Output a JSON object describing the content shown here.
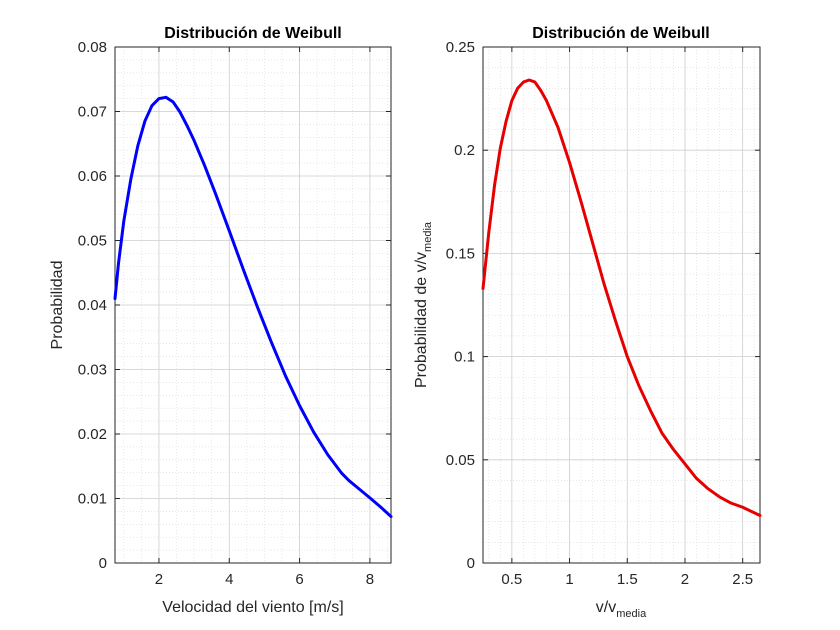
{
  "chart_data": [
    {
      "type": "line",
      "title": "Distribución de Weibull",
      "xlabel": "Velocidad del viento [m/s]",
      "ylabel": "Probabilidad",
      "xlim": [
        0.75,
        8.6
      ],
      "ylim": [
        0,
        0.08
      ],
      "xticks": [
        2,
        4,
        6,
        8
      ],
      "yticks": [
        0,
        0.01,
        0.02,
        0.03,
        0.04,
        0.05,
        0.06,
        0.07,
        0.08
      ],
      "grid": true,
      "minor_grid": true,
      "color": "#0000ff",
      "series": [
        {
          "x": [
            0.75,
            0.85,
            1.0,
            1.2,
            1.4,
            1.6,
            1.8,
            2.0,
            2.2,
            2.4,
            2.6,
            2.8,
            3.0,
            3.3,
            3.6,
            4.0,
            4.4,
            4.8,
            5.2,
            5.6,
            6.0,
            6.4,
            6.8,
            7.2,
            7.4,
            7.6,
            8.0,
            8.3,
            8.6
          ],
          "y": [
            0.041,
            0.0465,
            0.053,
            0.0595,
            0.0647,
            0.0685,
            0.0709,
            0.072,
            0.0722,
            0.0715,
            0.0699,
            0.0678,
            0.0655,
            0.0616,
            0.0574,
            0.0515,
            0.0455,
            0.0397,
            0.0342,
            0.029,
            0.0244,
            0.0203,
            0.0168,
            0.0139,
            0.0128,
            0.0119,
            0.0101,
            0.0087,
            0.0072
          ]
        }
      ]
    },
    {
      "type": "line",
      "title": "Distribución de Weibull",
      "xlabel": "v/v",
      "xlabel_sub": "media",
      "ylabel": "Probabilidad de v/v",
      "ylabel_sub": "media",
      "xlim": [
        0.25,
        2.65
      ],
      "ylim": [
        0,
        0.25
      ],
      "xticks": [
        0.5,
        1,
        1.5,
        2,
        2.5
      ],
      "yticks": [
        0,
        0.05,
        0.1,
        0.15,
        0.2,
        0.25
      ],
      "grid": true,
      "minor_grid": true,
      "color": "#e60000",
      "series": [
        {
          "x": [
            0.25,
            0.3,
            0.35,
            0.4,
            0.45,
            0.5,
            0.55,
            0.6,
            0.65,
            0.7,
            0.75,
            0.8,
            0.9,
            1.0,
            1.1,
            1.2,
            1.3,
            1.4,
            1.5,
            1.6,
            1.7,
            1.8,
            1.9,
            2.0,
            2.1,
            2.2,
            2.3,
            2.4,
            2.5,
            2.65
          ],
          "y": [
            0.133,
            0.16,
            0.183,
            0.201,
            0.214,
            0.224,
            0.23,
            0.233,
            0.234,
            0.233,
            0.229,
            0.224,
            0.211,
            0.194,
            0.175,
            0.155,
            0.135,
            0.117,
            0.1,
            0.086,
            0.074,
            0.063,
            0.055,
            0.048,
            0.041,
            0.036,
            0.032,
            0.029,
            0.027,
            0.023
          ]
        }
      ]
    }
  ]
}
